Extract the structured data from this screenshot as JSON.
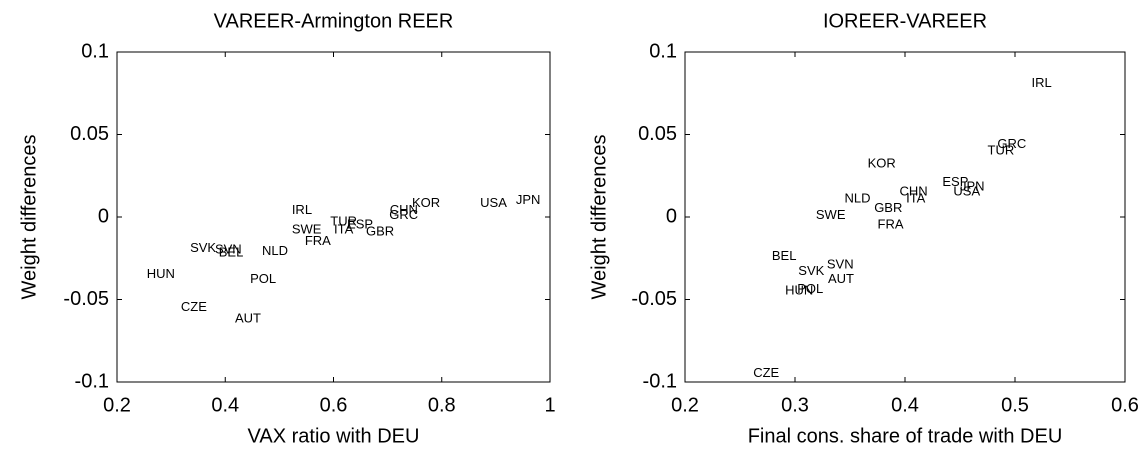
{
  "chart_data": [
    {
      "type": "scatter",
      "title": "VAREER-Armington REER",
      "x_label": "VAX ratio with DEU",
      "y_label": "Weight differences",
      "labels": [
        "IRL",
        "CHN",
        "GRC",
        "KOR",
        "USA",
        "JPN",
        "TUR",
        "ESP",
        "ITA",
        "GBR",
        "SWE",
        "FRA",
        "NLD",
        "SVK",
        "SVN",
        "BEL",
        "HUN",
        "POL",
        "CZE",
        "AUT"
      ],
      "x": [
        0.523,
        0.704,
        0.703,
        0.745,
        0.871,
        0.937,
        0.594,
        0.625,
        0.601,
        0.66,
        0.523,
        0.547,
        0.468,
        0.335,
        0.381,
        0.388,
        0.255,
        0.446,
        0.318,
        0.418
      ],
      "values": [
        0.004,
        0.004,
        0.001,
        0.008,
        0.008,
        0.01,
        -0.003,
        -0.005,
        -0.008,
        -0.009,
        -0.008,
        -0.015,
        -0.021,
        -0.019,
        -0.02,
        -0.022,
        -0.035,
        -0.038,
        -0.055,
        -0.062
      ],
      "xlim": [
        0.2,
        1
      ],
      "ylim": [
        -0.1,
        0.1
      ],
      "xticks": [
        0.2,
        0.4,
        0.6,
        0.8,
        1
      ],
      "yticks": [
        -0.1,
        -0.05,
        0,
        0.05,
        0.1
      ]
    },
    {
      "type": "scatter",
      "title": "IOREER-VAREER",
      "x_label": "Final cons. share of trade with DEU",
      "y_label": "Weight differences",
      "labels": [
        "IRL",
        "GRC",
        "TUR",
        "KOR",
        "ESP",
        "JPN",
        "USA",
        "CHN",
        "ITA",
        "NLD",
        "GBR",
        "SWE",
        "FRA",
        "BEL",
        "SVN",
        "SVK",
        "AUT",
        "POL",
        "HUN",
        "CZE"
      ],
      "x": [
        0.515,
        0.484,
        0.475,
        0.366,
        0.434,
        0.45,
        0.444,
        0.395,
        0.401,
        0.345,
        0.372,
        0.319,
        0.375,
        0.279,
        0.329,
        0.303,
        0.33,
        0.302,
        0.291,
        0.262
      ],
      "values": [
        0.081,
        0.044,
        0.04,
        0.032,
        0.021,
        0.018,
        0.015,
        0.015,
        0.011,
        0.011,
        0.005,
        0.001,
        -0.005,
        -0.024,
        -0.029,
        -0.033,
        -0.038,
        -0.044,
        -0.045,
        -0.095
      ],
      "xlim": [
        0.2,
        0.6
      ],
      "ylim": [
        -0.1,
        0.1
      ],
      "xticks": [
        0.2,
        0.3,
        0.4,
        0.5,
        0.6
      ],
      "yticks": [
        -0.1,
        -0.05,
        0,
        0.05,
        0.1
      ]
    }
  ]
}
